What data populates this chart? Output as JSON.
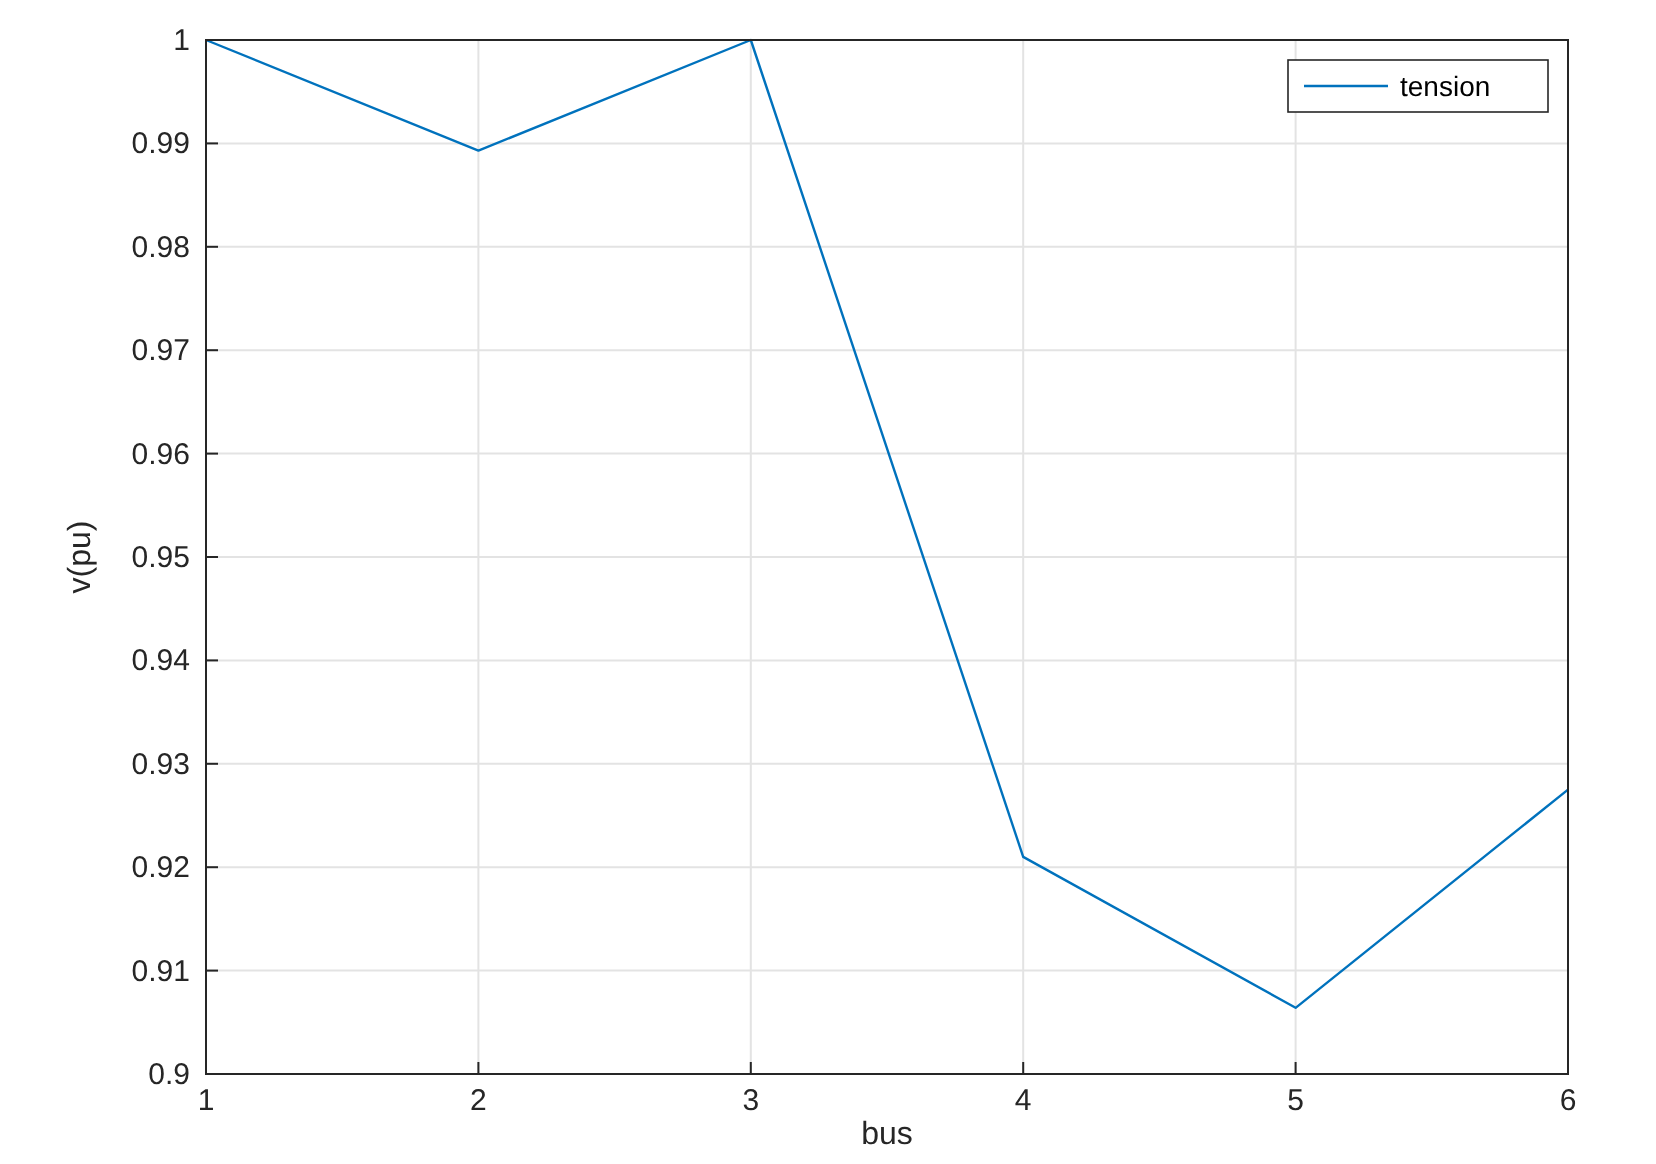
{
  "chart_data": {
    "type": "line",
    "xlabel": "bus",
    "ylabel": "v(pu)",
    "x": [
      1,
      2,
      3,
      4,
      5,
      6
    ],
    "series": [
      {
        "name": "tension",
        "color": "#0072bd",
        "values": [
          1.0,
          0.9893,
          1.0,
          0.921,
          0.9064,
          0.9275
        ]
      }
    ],
    "xlim": [
      1,
      6
    ],
    "xticks": [
      1,
      2,
      3,
      4,
      5,
      6
    ],
    "ylim": [
      0.9,
      1
    ],
    "yticks": [
      0.9,
      0.91,
      0.92,
      0.93,
      0.94,
      0.95,
      0.96,
      0.97,
      0.98,
      0.99,
      1
    ],
    "grid": true,
    "legend": "top right",
    "marker": "none",
    "line_style": "solid"
  }
}
